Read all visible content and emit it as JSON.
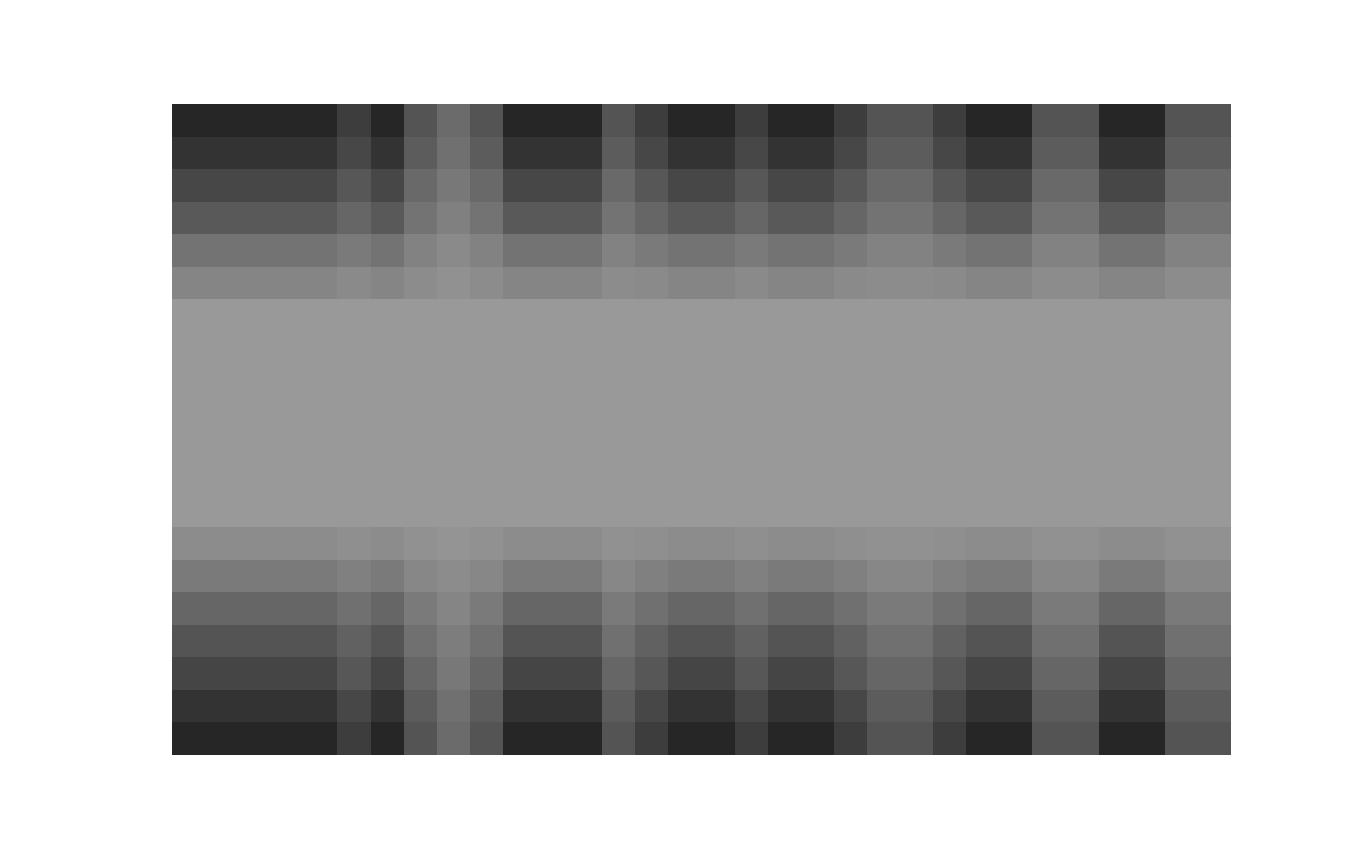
{
  "chart_data": {
    "type": "heatmap",
    "color": "gray",
    "tick_labels": false,
    "grid": false,
    "zlim": [
      0,
      100
    ],
    "cells": [
      [
        15,
        15,
        15,
        15,
        15,
        24,
        15,
        33,
        42,
        33,
        15,
        15,
        15,
        33,
        24,
        15,
        15,
        24,
        15,
        15,
        24,
        33,
        33,
        24,
        15,
        15,
        33,
        33,
        15,
        15,
        33,
        33
      ],
      [
        20,
        20,
        20,
        20,
        20,
        28,
        20,
        36,
        44,
        36,
        20,
        20,
        20,
        36,
        28,
        20,
        20,
        28,
        20,
        20,
        28,
        36,
        36,
        28,
        20,
        20,
        36,
        36,
        20,
        20,
        36,
        36
      ],
      [
        28,
        28,
        28,
        28,
        28,
        34,
        28,
        41,
        47,
        41,
        28,
        28,
        28,
        41,
        34,
        28,
        28,
        34,
        28,
        28,
        34,
        41,
        41,
        34,
        28,
        28,
        41,
        41,
        28,
        28,
        41,
        41
      ],
      [
        35,
        35,
        35,
        35,
        35,
        40,
        35,
        45,
        50,
        45,
        35,
        35,
        35,
        45,
        40,
        35,
        35,
        40,
        35,
        35,
        40,
        45,
        45,
        40,
        35,
        35,
        45,
        45,
        35,
        35,
        45,
        45
      ],
      [
        45,
        45,
        45,
        45,
        45,
        48,
        45,
        51,
        54,
        51,
        45,
        45,
        45,
        51,
        48,
        45,
        45,
        48,
        45,
        45,
        48,
        51,
        51,
        48,
        45,
        45,
        51,
        51,
        45,
        45,
        51,
        51
      ],
      [
        52,
        52,
        52,
        52,
        52,
        54,
        52,
        55,
        57,
        55,
        52,
        52,
        52,
        55,
        54,
        52,
        52,
        54,
        52,
        52,
        54,
        55,
        55,
        54,
        52,
        52,
        55,
        55,
        52,
        52,
        55,
        55
      ],
      [
        60,
        60,
        60,
        60,
        60,
        60,
        60,
        60,
        60,
        60,
        60,
        60,
        60,
        60,
        60,
        60,
        60,
        60,
        60,
        60,
        60,
        60,
        60,
        60,
        60,
        60,
        60,
        60,
        60,
        60,
        60,
        60
      ],
      [
        60,
        60,
        60,
        60,
        60,
        60,
        60,
        60,
        60,
        60,
        60,
        60,
        60,
        60,
        60,
        60,
        60,
        60,
        60,
        60,
        60,
        60,
        60,
        60,
        60,
        60,
        60,
        60,
        60,
        60,
        60,
        60
      ],
      [
        60,
        60,
        60,
        60,
        60,
        60,
        60,
        60,
        60,
        60,
        60,
        60,
        60,
        60,
        60,
        60,
        60,
        60,
        60,
        60,
        60,
        60,
        60,
        60,
        60,
        60,
        60,
        60,
        60,
        60,
        60,
        60
      ],
      [
        60,
        60,
        60,
        60,
        60,
        60,
        60,
        60,
        60,
        60,
        60,
        60,
        60,
        60,
        60,
        60,
        60,
        60,
        60,
        60,
        60,
        60,
        60,
        60,
        60,
        60,
        60,
        60,
        60,
        60,
        60,
        60
      ],
      [
        60,
        60,
        60,
        60,
        60,
        60,
        60,
        60,
        60,
        60,
        60,
        60,
        60,
        60,
        60,
        60,
        60,
        60,
        60,
        60,
        60,
        60,
        60,
        60,
        60,
        60,
        60,
        60,
        60,
        60,
        60,
        60
      ],
      [
        60,
        60,
        60,
        60,
        60,
        60,
        60,
        60,
        60,
        60,
        60,
        60,
        60,
        60,
        60,
        60,
        60,
        60,
        60,
        60,
        60,
        60,
        60,
        60,
        60,
        60,
        60,
        60,
        60,
        60,
        60,
        60
      ],
      [
        60,
        60,
        60,
        60,
        60,
        60,
        60,
        60,
        60,
        60,
        60,
        60,
        60,
        60,
        60,
        60,
        60,
        60,
        60,
        60,
        60,
        60,
        60,
        60,
        60,
        60,
        60,
        60,
        60,
        60,
        60,
        60
      ],
      [
        55,
        55,
        55,
        55,
        55,
        56,
        55,
        57,
        58,
        57,
        55,
        55,
        55,
        57,
        56,
        55,
        55,
        56,
        55,
        55,
        56,
        57,
        57,
        56,
        55,
        55,
        57,
        57,
        55,
        55,
        57,
        57
      ],
      [
        48,
        48,
        48,
        48,
        48,
        50,
        48,
        53,
        55,
        53,
        48,
        48,
        48,
        53,
        50,
        48,
        48,
        50,
        48,
        48,
        50,
        53,
        53,
        50,
        48,
        48,
        53,
        53,
        48,
        48,
        53,
        53
      ],
      [
        40,
        40,
        40,
        40,
        40,
        44,
        40,
        48,
        52,
        48,
        40,
        40,
        40,
        48,
        44,
        40,
        40,
        44,
        40,
        40,
        44,
        48,
        48,
        44,
        40,
        40,
        48,
        48,
        40,
        40,
        48,
        48
      ],
      [
        33,
        33,
        33,
        33,
        33,
        38,
        33,
        44,
        49,
        44,
        33,
        33,
        33,
        44,
        38,
        33,
        33,
        38,
        33,
        33,
        38,
        44,
        44,
        38,
        33,
        33,
        44,
        44,
        33,
        33,
        44,
        44
      ],
      [
        27,
        27,
        27,
        27,
        27,
        34,
        27,
        40,
        47,
        40,
        27,
        27,
        27,
        40,
        34,
        27,
        27,
        34,
        27,
        27,
        34,
        40,
        40,
        34,
        27,
        27,
        40,
        40,
        27,
        27,
        40,
        40
      ],
      [
        20,
        20,
        20,
        20,
        20,
        28,
        20,
        36,
        44,
        36,
        20,
        20,
        20,
        36,
        28,
        20,
        20,
        28,
        20,
        20,
        28,
        36,
        36,
        28,
        20,
        20,
        36,
        36,
        20,
        20,
        36,
        36
      ],
      [
        15,
        15,
        15,
        15,
        15,
        24,
        15,
        33,
        42,
        33,
        15,
        15,
        15,
        33,
        24,
        15,
        15,
        24,
        15,
        15,
        24,
        33,
        33,
        24,
        15,
        15,
        33,
        33,
        15,
        15,
        33,
        33
      ]
    ]
  }
}
